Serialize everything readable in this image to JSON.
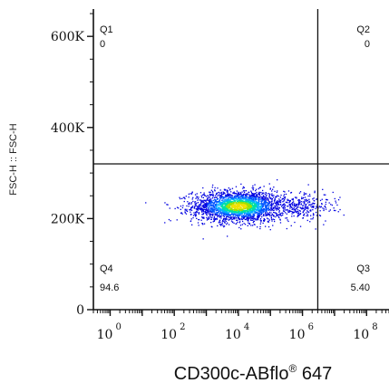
{
  "chart_data": {
    "type": "scatter",
    "xlabel": "CD300c-ABflo",
    "xlabel_superscript": "®",
    "xlabel_suffix": " 647",
    "ylabel": "FSC-H :: FSC-H",
    "x_scale": "log",
    "xlim": [
      0.3,
      500000000
    ],
    "ylim": [
      0,
      660000
    ],
    "y_ticks": [
      {
        "value": 0,
        "label": "0"
      },
      {
        "value": 200000,
        "label": "200K"
      },
      {
        "value": 400000,
        "label": "400K"
      },
      {
        "value": 600000,
        "label": "600K"
      }
    ],
    "x_ticks": [
      {
        "value": 1,
        "base": "10",
        "exp": "0"
      },
      {
        "value": 100,
        "base": "10",
        "exp": "2"
      },
      {
        "value": 10000,
        "base": "10",
        "exp": "4"
      },
      {
        "value": 1000000,
        "base": "10",
        "exp": "6"
      },
      {
        "value": 100000000,
        "base": "10",
        "exp": "8"
      }
    ],
    "gate_x": 3000000,
    "gate_y": 320000,
    "quadrants": [
      {
        "name": "Q1",
        "value": "0"
      },
      {
        "name": "Q2",
        "value": "0"
      },
      {
        "name": "Q3",
        "value": "5.40"
      },
      {
        "name": "Q4",
        "value": "94.6"
      }
    ],
    "population": {
      "center_x": 10000,
      "center_y": 228000
    },
    "grid": false,
    "colors": {
      "axis": "#111111",
      "gate": "#111111",
      "density": [
        "#0000e0",
        "#0055ff",
        "#00b0ff",
        "#00e0a0",
        "#9be000",
        "#f0e000"
      ]
    }
  }
}
